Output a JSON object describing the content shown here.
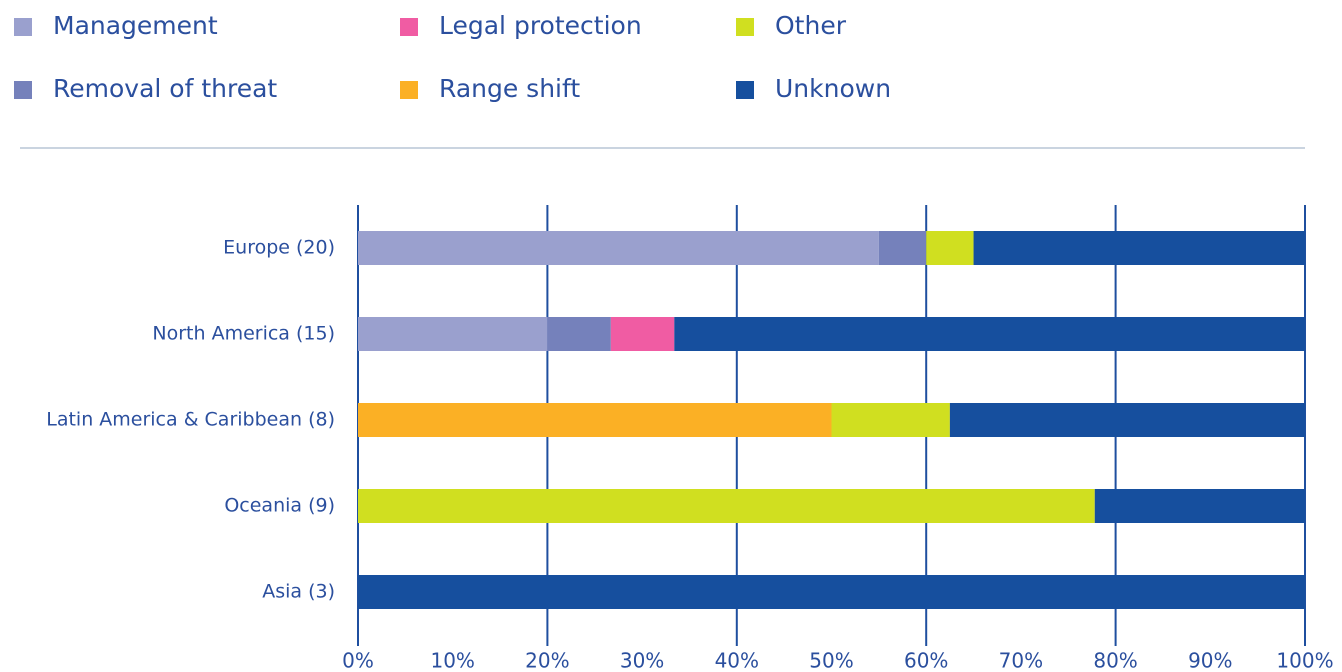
{
  "chart_data": {
    "type": "stacked_barh",
    "categories": [
      "Europe (20)",
      "North America (15)",
      "Latin America & Caribbean (8)",
      "Oceania (9)",
      "Asia (3)"
    ],
    "series": [
      {
        "name": "Management",
        "color": "#9aa0ce",
        "values": [
          55,
          20,
          null,
          null,
          null
        ]
      },
      {
        "name": "Removal of threat",
        "color": "#7581bb",
        "values": [
          5,
          6.7,
          null,
          null,
          null
        ]
      },
      {
        "name": "Legal protection",
        "color": "#f05ca3",
        "values": [
          null,
          6.7,
          null,
          null,
          null
        ]
      },
      {
        "name": "Range shift",
        "color": "#fbb025",
        "values": [
          null,
          null,
          50,
          null,
          null
        ]
      },
      {
        "name": "Other",
        "color": "#d0df20",
        "values": [
          5,
          null,
          12.5,
          77.8,
          null
        ]
      },
      {
        "name": "Unknown",
        "color": "#164f9e",
        "values": [
          35,
          66.6,
          37.5,
          22.2,
          100
        ]
      }
    ],
    "xlim": [
      0,
      100
    ],
    "xticks": [
      {
        "value": 0,
        "label": "0%"
      },
      {
        "value": 10,
        "label": "10%"
      },
      {
        "value": 20,
        "label": "20%"
      },
      {
        "value": 30,
        "label": "30%"
      },
      {
        "value": 40,
        "label": "40%"
      },
      {
        "value": 50,
        "label": "50%"
      },
      {
        "value": 60,
        "label": "60%"
      },
      {
        "value": 70,
        "label": "70%"
      },
      {
        "value": 80,
        "label": "80%"
      },
      {
        "value": 90,
        "label": "90%"
      },
      {
        "value": 100,
        "label": "100%"
      }
    ],
    "grid": true
  }
}
